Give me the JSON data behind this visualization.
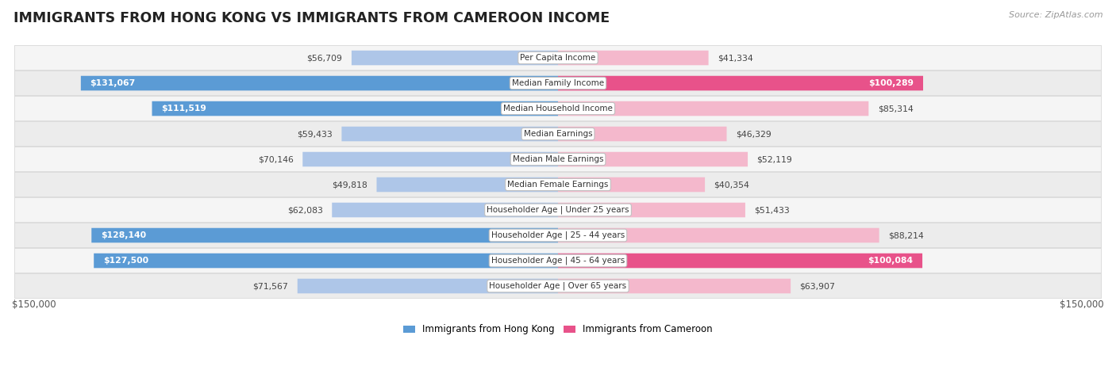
{
  "title": "IMMIGRANTS FROM HONG KONG VS IMMIGRANTS FROM CAMEROON INCOME",
  "source": "Source: ZipAtlas.com",
  "categories": [
    "Per Capita Income",
    "Median Family Income",
    "Median Household Income",
    "Median Earnings",
    "Median Male Earnings",
    "Median Female Earnings",
    "Householder Age | Under 25 years",
    "Householder Age | 25 - 44 years",
    "Householder Age | 45 - 64 years",
    "Householder Age | Over 65 years"
  ],
  "hk_values": [
    56709,
    131067,
    111519,
    59433,
    70146,
    49818,
    62083,
    128140,
    127500,
    71567
  ],
  "cam_values": [
    41334,
    100289,
    85314,
    46329,
    52119,
    40354,
    51433,
    88214,
    100084,
    63907
  ],
  "hk_labels": [
    "$56,709",
    "$131,067",
    "$111,519",
    "$59,433",
    "$70,146",
    "$49,818",
    "$62,083",
    "$128,140",
    "$127,500",
    "$71,567"
  ],
  "cam_labels": [
    "$41,334",
    "$100,289",
    "$85,314",
    "$46,329",
    "$52,119",
    "$40,354",
    "$51,433",
    "$88,214",
    "$100,084",
    "$63,907"
  ],
  "hk_color_light": "#aec6e8",
  "hk_color_dark": "#5b9bd5",
  "cam_color_light": "#f4b8cc",
  "cam_color_dark": "#e8528a",
  "max_val": 150000,
  "hk_legend": "Immigrants from Hong Kong",
  "cam_legend": "Immigrants from Cameroon",
  "label_threshold": 100000,
  "row_bg_even": "#f5f5f5",
  "row_bg_odd": "#ececec"
}
